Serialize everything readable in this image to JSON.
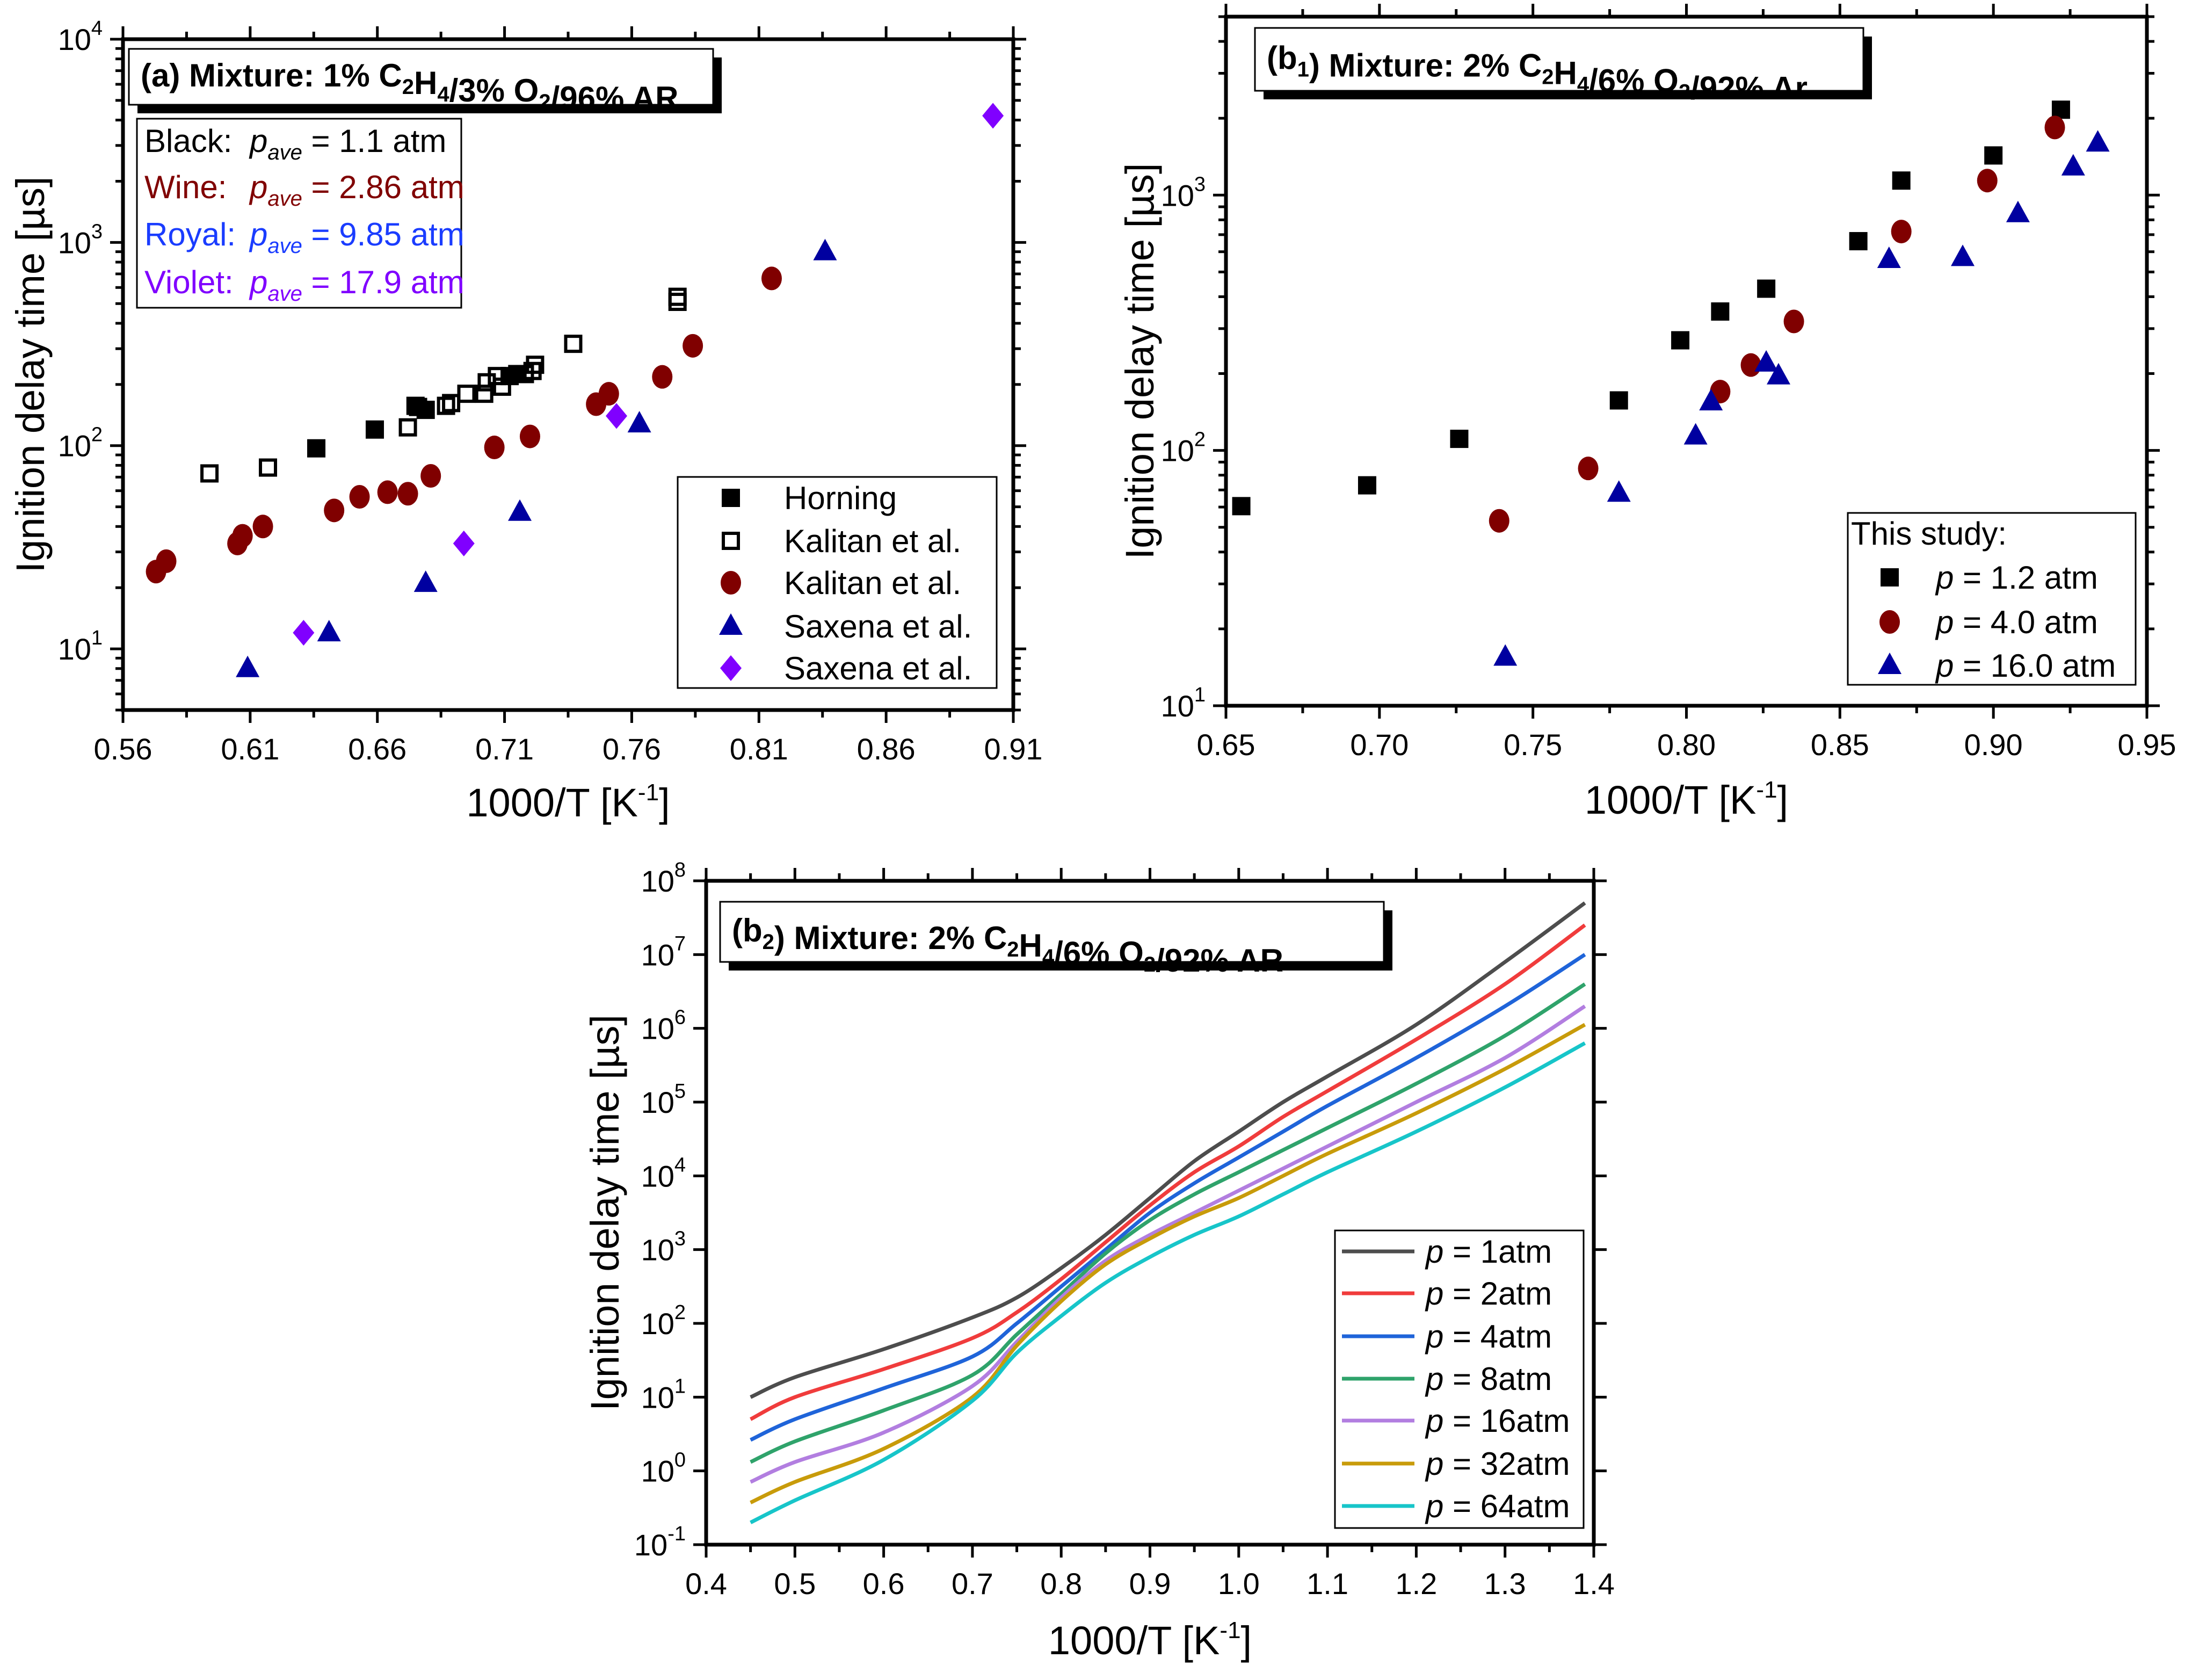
{
  "chart_data": [
    {
      "id": "a",
      "type": "scatter",
      "title": "(a) Mixture: 1% C2H4/3% O2/96% AR",
      "xlabel": "1000/T [K-1]",
      "ylabel": "Ignition delay time [µs]",
      "xlim": [
        0.56,
        0.91
      ],
      "ylim": [
        5,
        10000
      ],
      "yscale": "log",
      "xticks": [
        "0.56",
        "0.61",
        "0.66",
        "0.71",
        "0.76",
        "0.81",
        "0.86",
        "0.91"
      ],
      "yticks_exp": [
        1,
        2,
        3,
        4
      ],
      "info_box": [
        {
          "label": "Black:",
          "var": "p",
          "sub": "ave",
          "value": "= 1.1 atm",
          "color": "#000000"
        },
        {
          "label": "Wine:",
          "var": "p",
          "sub": "ave",
          "value": "= 2.86 atm",
          "color": "#800000"
        },
        {
          "label": "Royal:",
          "var": "p",
          "sub": "ave",
          "value": "= 9.85 atm",
          "color": "#1a3cff"
        },
        {
          "label": "Violet:",
          "var": "p",
          "sub": "ave",
          "value": "= 17.9 atm",
          "color": "#8000ff"
        }
      ],
      "legend_position": "bottom-right",
      "series": [
        {
          "name": "Horning",
          "marker": "square",
          "color": "#000000",
          "points": [
            [
              0.636,
              97
            ],
            [
              0.659,
              120
            ],
            [
              0.676,
              155
            ],
            [
              0.679,
              150
            ],
            [
              0.712,
              220
            ],
            [
              0.715,
              225
            ]
          ]
        },
        {
          "name": "Kalitan et al.",
          "marker": "square-open",
          "color": "#000000",
          "points": [
            [
              0.594,
              73
            ],
            [
              0.617,
              78
            ],
            [
              0.672,
              123
            ],
            [
              0.675,
              157
            ],
            [
              0.687,
              157
            ],
            [
              0.689,
              162
            ],
            [
              0.695,
              180
            ],
            [
              0.702,
              180
            ],
            [
              0.703,
              205
            ],
            [
              0.707,
              220
            ],
            [
              0.709,
              195
            ],
            [
              0.718,
              225
            ],
            [
              0.721,
              233
            ],
            [
              0.722,
              250
            ],
            [
              0.737,
              317
            ],
            [
              0.778,
              510
            ],
            [
              0.778,
              540
            ]
          ]
        },
        {
          "name": "Kalitan et al.",
          "marker": "circle",
          "color": "#800000",
          "points": [
            [
              0.573,
              24
            ],
            [
              0.577,
              27
            ],
            [
              0.605,
              33
            ],
            [
              0.607,
              36
            ],
            [
              0.615,
              40
            ],
            [
              0.643,
              48
            ],
            [
              0.653,
              56
            ],
            [
              0.664,
              59
            ],
            [
              0.672,
              58
            ],
            [
              0.681,
              71
            ],
            [
              0.706,
              98
            ],
            [
              0.72,
              111
            ],
            [
              0.746,
              160
            ],
            [
              0.751,
              180
            ],
            [
              0.772,
              218
            ],
            [
              0.784,
              310
            ],
            [
              0.815,
              665
            ]
          ]
        },
        {
          "name": "Saxena et al.",
          "marker": "triangle",
          "color": "#0000a0",
          "points": [
            [
              0.609,
              8
            ],
            [
              0.641,
              12
            ],
            [
              0.679,
              21
            ],
            [
              0.716,
              47
            ],
            [
              0.763,
              128
            ],
            [
              0.836,
              900
            ]
          ]
        },
        {
          "name": "Saxena et al.",
          "marker": "diamond",
          "color": "#8000ff",
          "points": [
            [
              0.631,
              12
            ],
            [
              0.694,
              33
            ],
            [
              0.754,
              140
            ],
            [
              0.902,
              4200
            ]
          ]
        }
      ]
    },
    {
      "id": "b1",
      "type": "scatter",
      "title": "(b1) Mixture: 2% C2H4/6% O2/92% Ar",
      "xlabel": "1000/T [K-1]",
      "ylabel": "Ignition delay time [µs]",
      "xlim": [
        0.65,
        0.95
      ],
      "ylim": [
        10,
        5000
      ],
      "yscale": "log",
      "xticks": [
        "0.65",
        "0.70",
        "0.75",
        "0.80",
        "0.85",
        "0.90",
        "0.95"
      ],
      "yticks_exp": [
        1,
        2,
        3
      ],
      "legend_title": "This study:",
      "legend_position": "bottom-right",
      "series": [
        {
          "name": "= 1.2 atm",
          "var": "p",
          "marker": "square",
          "color": "#000000",
          "points": [
            [
              0.655,
              60.5
            ],
            [
              0.696,
              73
            ],
            [
              0.726,
              111
            ],
            [
              0.778,
              157
            ],
            [
              0.798,
              270
            ],
            [
              0.811,
              350
            ],
            [
              0.826,
              430
            ],
            [
              0.856,
              660
            ],
            [
              0.87,
              1140
            ],
            [
              0.9,
              1430
            ],
            [
              0.922,
              2160
            ]
          ]
        },
        {
          "name": "= 4.0 atm",
          "var": "p",
          "marker": "circle",
          "color": "#800000",
          "points": [
            [
              0.739,
              53
            ],
            [
              0.768,
              85
            ],
            [
              0.811,
              170
            ],
            [
              0.821,
              216
            ],
            [
              0.835,
              320
            ],
            [
              0.87,
              720
            ],
            [
              0.898,
              1140
            ],
            [
              0.92,
              1840
            ]
          ]
        },
        {
          "name": "= 16.0 atm",
          "var": "p",
          "marker": "triangle",
          "color": "#0000a0",
          "points": [
            [
              0.741,
              15.5
            ],
            [
              0.778,
              68
            ],
            [
              0.803,
              114
            ],
            [
              0.808,
              155
            ],
            [
              0.826,
              220
            ],
            [
              0.83,
              196
            ],
            [
              0.866,
              560
            ],
            [
              0.89,
              570
            ],
            [
              0.908,
              846
            ],
            [
              0.926,
              1290
            ],
            [
              0.934,
              1600
            ]
          ]
        }
      ]
    },
    {
      "id": "b2",
      "type": "line",
      "title": "(b2) Mixture: 2% C2H4/6% O2/92% AR",
      "xlabel": "1000/T [K-1]",
      "ylabel": "Ignition delay time [µs]",
      "xlim": [
        0.4,
        1.4
      ],
      "ylim": [
        0.1,
        100000000
      ],
      "yscale": "log",
      "xticks": [
        "0.4",
        "0.5",
        "0.6",
        "0.7",
        "0.8",
        "0.9",
        "1.0",
        "1.1",
        "1.2",
        "1.3",
        "1.4"
      ],
      "yticks_exp": [
        -1,
        0,
        1,
        2,
        3,
        4,
        5,
        6,
        7,
        8
      ],
      "legend_position": "bottom-right",
      "x": [
        0.45,
        0.5,
        0.6,
        0.7,
        0.75,
        0.8,
        0.85,
        0.9,
        0.95,
        1.0,
        1.05,
        1.1,
        1.2,
        1.3,
        1.39
      ],
      "series": [
        {
          "name": "= 1atm",
          "var": "p",
          "color": "#4d4d4d",
          "log10_values": [
            1.0,
            1.27,
            1.65,
            2.08,
            2.35,
            2.75,
            3.2,
            3.7,
            4.2,
            4.6,
            5.0,
            5.35,
            6.05,
            6.9,
            7.7
          ]
        },
        {
          "name": "= 2atm",
          "var": "p",
          "color": "#f03c3c",
          "log10_values": [
            0.7,
            1.0,
            1.38,
            1.8,
            2.15,
            2.6,
            3.1,
            3.6,
            4.05,
            4.4,
            4.8,
            5.15,
            5.85,
            6.6,
            7.4
          ]
        },
        {
          "name": "= 4atm",
          "var": "p",
          "color": "#1f64d9",
          "log10_values": [
            0.42,
            0.7,
            1.12,
            1.55,
            2.0,
            2.5,
            3.0,
            3.5,
            3.9,
            4.25,
            4.6,
            4.95,
            5.6,
            6.3,
            7.0
          ]
        },
        {
          "name": "= 8atm",
          "var": "p",
          "color": "#2fa36b",
          "log10_values": [
            0.12,
            0.4,
            0.82,
            1.3,
            1.85,
            2.4,
            2.95,
            3.4,
            3.75,
            4.05,
            4.35,
            4.65,
            5.25,
            5.9,
            6.6
          ]
        },
        {
          "name": "= 16atm",
          "var": "p",
          "color": "#b27ee0",
          "log10_values": [
            -0.15,
            0.12,
            0.52,
            1.15,
            1.75,
            2.35,
            2.85,
            3.2,
            3.5,
            3.8,
            4.1,
            4.4,
            5.0,
            5.6,
            6.3
          ]
        },
        {
          "name": "= 32atm",
          "var": "p",
          "color": "#c89b0a",
          "log10_values": [
            -0.43,
            -0.15,
            0.3,
            1.0,
            1.7,
            2.3,
            2.8,
            3.15,
            3.45,
            3.7,
            4.0,
            4.3,
            4.85,
            5.45,
            6.05
          ]
        },
        {
          "name": "= 64atm",
          "var": "p",
          "color": "#17c5c9",
          "log10_values": [
            -0.7,
            -0.4,
            0.15,
            0.95,
            1.6,
            2.1,
            2.55,
            2.9,
            3.2,
            3.45,
            3.75,
            4.05,
            4.6,
            5.2,
            5.8
          ]
        }
      ]
    }
  ]
}
